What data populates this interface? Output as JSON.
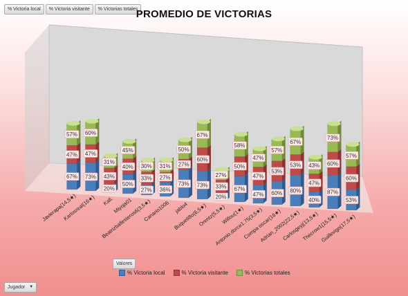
{
  "pivot_buttons": {
    "local": "% Victoria local",
    "visitante": "% Victoria visitante",
    "totales": "% Victorias totales",
    "valores": "Valores",
    "jugador": "Jugador"
  },
  "colors": {
    "local": "#4a7ebb",
    "visitante": "#be4b48",
    "totales": "#98b954"
  },
  "chart_data": {
    "type": "bar",
    "stacked": true,
    "three_d": true,
    "title": "PROMEDIO DE VICTORIAS",
    "legend_position": "bottom",
    "categories": [
      "Javierapa(14,5★)",
      "Karlosreal(16★)",
      "Kafi.",
      "Miyoja01",
      "Beatrizballesteros6(3,5★)",
      "Canario1006",
      "jablo4",
      "Buqueti8o(6,5★)",
      "Orentz(5,5★)",
      "Willou(1★)",
      "Antonio.dorce1.75(3,5★)",
      "Compa oscar(16★)",
      "Adrian_2002(22,5★)",
      "Carlosgeyj(13,5★)",
      "Thecrow1(15,5★)",
      "Guillevigo(17,5★)"
    ],
    "series": [
      {
        "name": "% Victoria local",
        "values": [
          67,
          73,
          20,
          50,
          27,
          36,
          73,
          73,
          20,
          67,
          47,
          60,
          80,
          40,
          87,
          53
        ],
        "labels": [
          "67%",
          "73%",
          "20%",
          "50%",
          "27%",
          "36%",
          "73%",
          "73%",
          "20%",
          "67%",
          "47%",
          "60%",
          "80%",
          "40%",
          "87%",
          "53%"
        ]
      },
      {
        "name": "% Victoria visitante",
        "values": [
          47,
          47,
          43,
          40,
          33,
          27,
          27,
          60,
          33,
          50,
          47,
          53,
          53,
          47,
          60,
          60
        ],
        "labels": [
          "47%",
          "47%",
          "43%",
          "40%",
          "33%",
          "27%",
          "27%",
          "60%",
          "33%",
          "50%",
          "47%",
          "53%",
          "53%",
          "47%",
          "60%",
          "60%"
        ]
      },
      {
        "name": "% Victorias totales",
        "values": [
          57,
          60,
          31,
          45,
          30,
          31,
          50,
          67,
          27,
          58,
          47,
          57,
          67,
          43,
          73,
          57
        ],
        "labels": [
          "57%",
          "60%",
          "31%",
          "45%",
          "30%",
          "31%",
          "50%",
          "67%",
          "27%",
          "58%",
          "47%",
          "57%",
          "67%",
          "43%",
          "73%",
          "57%"
        ]
      }
    ]
  }
}
